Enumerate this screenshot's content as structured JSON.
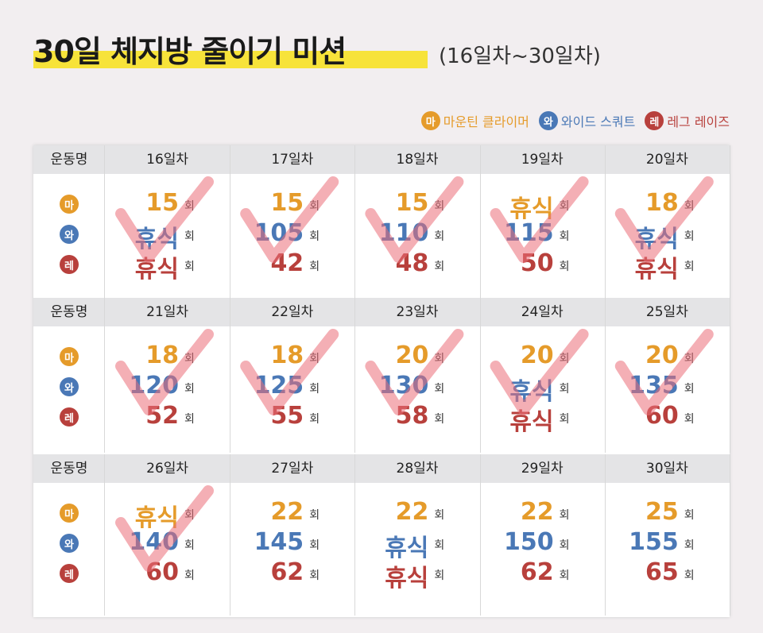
{
  "header": {
    "title": "30일 체지방 줄이기 미션",
    "subtitle": "(16일차~30일차)"
  },
  "legend": [
    {
      "badge": "마",
      "label": "마운틴 클라이머"
    },
    {
      "badge": "와",
      "label": "와이드 스쿼트"
    },
    {
      "badge": "레",
      "label": "레그 레이즈"
    }
  ],
  "table": {
    "row_header": "운동명",
    "unit": "회",
    "blocks": [
      {
        "days": [
          "16일차",
          "17일차",
          "18일차",
          "19일차",
          "20일차"
        ],
        "cells": [
          [
            15,
            "휴식",
            "휴식"
          ],
          [
            15,
            105,
            42
          ],
          [
            15,
            110,
            48
          ],
          [
            "휴식",
            115,
            50
          ],
          [
            18,
            "휴식",
            "휴식"
          ]
        ]
      },
      {
        "days": [
          "21일차",
          "22일차",
          "23일차",
          "24일차",
          "25일차"
        ],
        "cells": [
          [
            18,
            120,
            52
          ],
          [
            18,
            125,
            55
          ],
          [
            20,
            130,
            58
          ],
          [
            20,
            "휴식",
            "휴식"
          ],
          [
            20,
            135,
            60
          ]
        ]
      },
      {
        "days": [
          "26일차",
          "27일차",
          "28일차",
          "29일차",
          "30일차"
        ],
        "cells": [
          [
            "휴식",
            140,
            60
          ],
          [
            22,
            145,
            62
          ],
          [
            22,
            "휴식",
            "휴식"
          ],
          [
            22,
            150,
            62
          ],
          [
            25,
            155,
            65
          ]
        ]
      }
    ]
  }
}
